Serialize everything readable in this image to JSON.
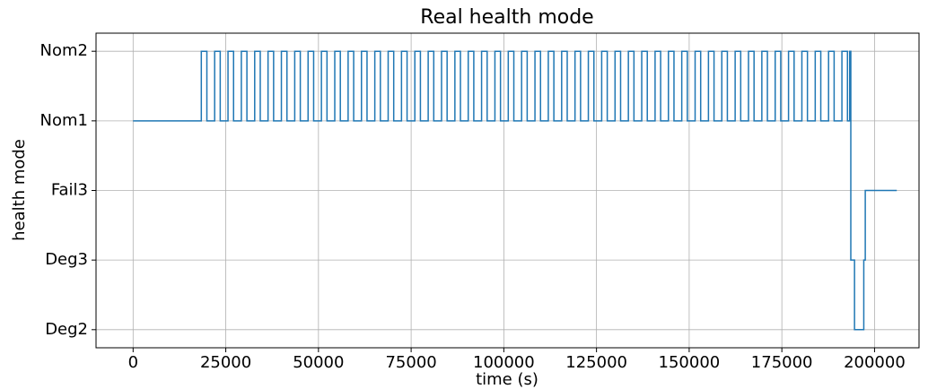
{
  "chart_data": {
    "type": "line",
    "title": "Real health mode",
    "xlabel": "time (s)",
    "ylabel": "health mode",
    "drawstyle": "steps-post",
    "grid": true,
    "xlim": [
      -10000,
      212000
    ],
    "xticks": [
      0,
      25000,
      50000,
      75000,
      100000,
      125000,
      150000,
      175000,
      200000
    ],
    "ylim": [
      -0.26,
      4.26
    ],
    "yticks": [
      {
        "value": 0,
        "label": "Deg2"
      },
      {
        "value": 1,
        "label": "Deg3"
      },
      {
        "value": 2,
        "label": "Fail3"
      },
      {
        "value": 3,
        "label": "Nom1"
      },
      {
        "value": 4,
        "label": "Nom2"
      }
    ],
    "x": [
      0,
      18400,
      19900,
      22000,
      23500,
      25600,
      27100,
      29200,
      30700,
      32800,
      34300,
      36400,
      37900,
      40000,
      41500,
      43600,
      45100,
      47200,
      48700,
      50800,
      52300,
      54400,
      55900,
      58000,
      59500,
      61600,
      63100,
      65200,
      66700,
      68800,
      70300,
      72400,
      73900,
      76000,
      77500,
      79600,
      81100,
      83200,
      84700,
      86800,
      88300,
      90400,
      91900,
      94000,
      95500,
      97600,
      99100,
      101200,
      102700,
      104800,
      106300,
      108400,
      109900,
      112000,
      113500,
      115600,
      117100,
      119200,
      120700,
      122800,
      124300,
      126400,
      127900,
      130000,
      131500,
      133600,
      135100,
      137200,
      138700,
      140800,
      142300,
      144400,
      145900,
      148000,
      149500,
      151600,
      153100,
      155200,
      156700,
      158800,
      160300,
      162400,
      163900,
      166000,
      167500,
      169600,
      171100,
      173200,
      174700,
      176800,
      178300,
      180400,
      181900,
      184000,
      185500,
      187600,
      189100,
      191200,
      192700,
      193300,
      193600,
      194600,
      197100,
      197500,
      206000
    ],
    "series": [
      {
        "name": "health mode",
        "color": "#1f77b4",
        "values": [
          3,
          4,
          3,
          4,
          3,
          4,
          3,
          4,
          3,
          4,
          3,
          4,
          3,
          4,
          3,
          4,
          3,
          4,
          3,
          4,
          3,
          4,
          3,
          4,
          3,
          4,
          3,
          4,
          3,
          4,
          3,
          4,
          3,
          4,
          3,
          4,
          3,
          4,
          3,
          4,
          3,
          4,
          3,
          4,
          3,
          4,
          3,
          4,
          3,
          4,
          3,
          4,
          3,
          4,
          3,
          4,
          3,
          4,
          3,
          4,
          3,
          4,
          3,
          4,
          3,
          4,
          3,
          4,
          3,
          4,
          3,
          4,
          3,
          4,
          3,
          4,
          3,
          4,
          3,
          4,
          3,
          4,
          3,
          4,
          3,
          4,
          3,
          4,
          3,
          4,
          3,
          4,
          3,
          4,
          3,
          4,
          3,
          4,
          3,
          4,
          1,
          0,
          1,
          2,
          2
        ]
      }
    ]
  }
}
